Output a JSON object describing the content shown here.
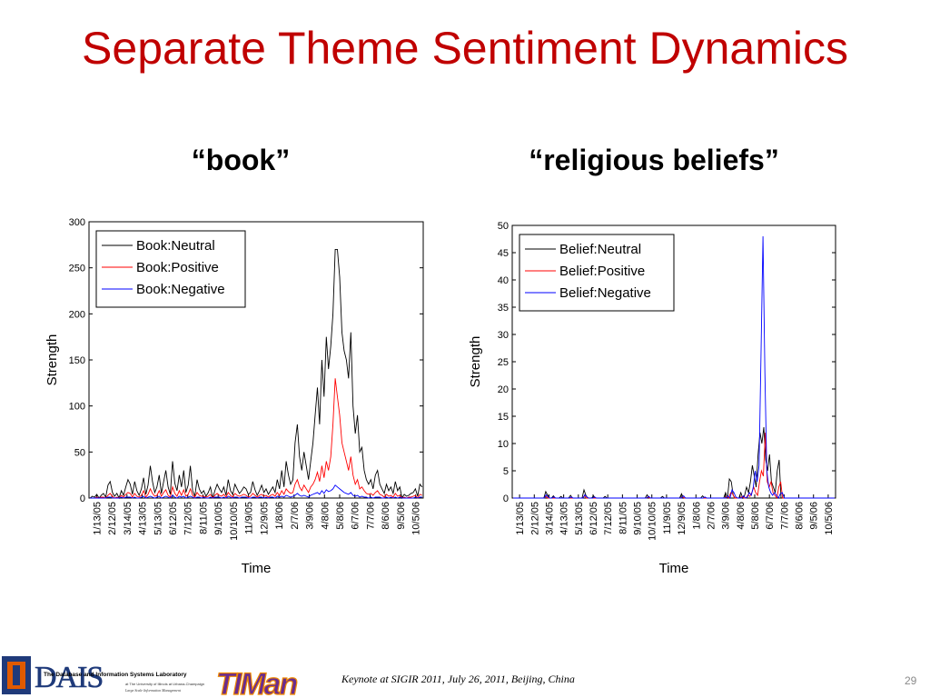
{
  "slide": {
    "title": "Separate Theme Sentiment Dynamics",
    "subtitle_left": "“book”",
    "subtitle_right": "“religious beliefs”",
    "footer": "Keynote at SIGIR 2011,  July 26, 2011, Beijing, China",
    "page_number": "29",
    "logo_dais": "DAIS",
    "logo_dais_caption": "The Database and Information Systems Laboratory",
    "logo_dais_sub1": "at The University of Illinois at Urbana-Champaign",
    "logo_dais_sub2": "Large Scale Information Management",
    "logo_timan": "TIMan",
    "colors": {
      "title": "#c00000",
      "illinois_blue": "#1f3a7a",
      "illinois_orange": "#e05a00",
      "timan_purple": "#6a2c8e",
      "timan_orange": "#f08a00"
    }
  },
  "chart_data": [
    {
      "type": "line",
      "xlabel": "Time",
      "ylabel": "Strength",
      "ylim": [
        0,
        300
      ],
      "yticks": [
        0,
        50,
        100,
        150,
        200,
        250,
        300
      ],
      "x_ticks": [
        "1/13/05",
        "2/12/05",
        "3/14/05",
        "4/13/05",
        "5/13/05",
        "6/12/05",
        "7/12/05",
        "8/11/05",
        "9/10/05",
        "10/10/05",
        "11/9/05",
        "12/9/05",
        "1/8/06",
        "2/7/06",
        "3/9/06",
        "4/8/06",
        "5/8/06",
        "6/7/06",
        "7/7/06",
        "8/6/06",
        "9/5/06",
        "10/5/06"
      ],
      "legend_position": "top-left",
      "series": [
        {
          "name": "Book:Neutral",
          "color": "#000000",
          "values": [
            0,
            2,
            1,
            4,
            0,
            3,
            5,
            1,
            14,
            18,
            6,
            2,
            5,
            0,
            8,
            3,
            12,
            20,
            15,
            4,
            18,
            8,
            3,
            10,
            22,
            4,
            14,
            35,
            18,
            6,
            12,
            25,
            5,
            18,
            30,
            12,
            4,
            40,
            16,
            8,
            25,
            12,
            30,
            6,
            14,
            35,
            8,
            2,
            20,
            10,
            5,
            8,
            2,
            6,
            12,
            0,
            8,
            15,
            10,
            6,
            12,
            3,
            20,
            8,
            4,
            15,
            10,
            5,
            8,
            12,
            10,
            4,
            6,
            18,
            9,
            3,
            8,
            14,
            6,
            10,
            4,
            8,
            12,
            6,
            20,
            10,
            30,
            12,
            40,
            25,
            15,
            20,
            60,
            80,
            45,
            30,
            50,
            35,
            20,
            40,
            60,
            90,
            120,
            80,
            150,
            110,
            175,
            140,
            165,
            200,
            270,
            270,
            240,
            180,
            160,
            150,
            130,
            180,
            100,
            70,
            90,
            50,
            55,
            30,
            20,
            15,
            20,
            10,
            25,
            30,
            15,
            10,
            5,
            15,
            8,
            12,
            5,
            18,
            8,
            12,
            0,
            4,
            2,
            3,
            5,
            6,
            10,
            2,
            15,
            12
          ]
        },
        {
          "name": "Book:Positive",
          "color": "#ff0000",
          "values": [
            0,
            0,
            0,
            1,
            0,
            1,
            1,
            0,
            3,
            5,
            2,
            0,
            1,
            0,
            3,
            1,
            4,
            6,
            5,
            1,
            5,
            2,
            1,
            3,
            8,
            1,
            4,
            10,
            5,
            2,
            3,
            8,
            2,
            6,
            9,
            3,
            1,
            12,
            5,
            2,
            8,
            3,
            9,
            2,
            4,
            10,
            3,
            1,
            6,
            3,
            2,
            2,
            1,
            2,
            4,
            0,
            3,
            5,
            3,
            2,
            4,
            1,
            6,
            3,
            1,
            5,
            3,
            2,
            3,
            4,
            3,
            1,
            2,
            5,
            3,
            1,
            3,
            4,
            2,
            3,
            1,
            3,
            4,
            2,
            6,
            3,
            8,
            4,
            10,
            7,
            5,
            6,
            15,
            20,
            12,
            8,
            14,
            10,
            6,
            12,
            15,
            20,
            28,
            18,
            35,
            22,
            40,
            30,
            45,
            80,
            130,
            110,
            90,
            60,
            50,
            40,
            30,
            45,
            25,
            15,
            20,
            10,
            12,
            8,
            5,
            4,
            5,
            3,
            6,
            8,
            4,
            3,
            1,
            4,
            2,
            3,
            1,
            5,
            2,
            3,
            0,
            1,
            0,
            1,
            1,
            2,
            3,
            0,
            4,
            3
          ]
        },
        {
          "name": "Book:Negative",
          "color": "#0000ff",
          "values": [
            0,
            0,
            0,
            0,
            0,
            0,
            0,
            0,
            1,
            1,
            0,
            0,
            0,
            0,
            1,
            0,
            1,
            1,
            1,
            0,
            1,
            0,
            0,
            1,
            2,
            0,
            1,
            2,
            1,
            0,
            1,
            2,
            0,
            1,
            2,
            1,
            0,
            3,
            1,
            0,
            2,
            1,
            2,
            0,
            1,
            2,
            1,
            0,
            1,
            1,
            0,
            1,
            0,
            0,
            1,
            0,
            1,
            1,
            1,
            0,
            1,
            0,
            2,
            1,
            0,
            1,
            1,
            0,
            1,
            1,
            1,
            0,
            0,
            1,
            1,
            0,
            1,
            1,
            0,
            1,
            0,
            1,
            1,
            0,
            2,
            1,
            2,
            1,
            3,
            2,
            1,
            2,
            3,
            5,
            3,
            2,
            3,
            2,
            1,
            3,
            4,
            5,
            6,
            4,
            8,
            5,
            9,
            7,
            8,
            10,
            14,
            12,
            10,
            8,
            6,
            5,
            4,
            6,
            3,
            2,
            3,
            1,
            2,
            1,
            1,
            0,
            1,
            0,
            1,
            1,
            1,
            0,
            0,
            1,
            0,
            1,
            0,
            1,
            0,
            1,
            0,
            0,
            0,
            0,
            0,
            0,
            1,
            0,
            1,
            1
          ]
        }
      ]
    },
    {
      "type": "line",
      "xlabel": "Time",
      "ylabel": "Strength",
      "ylim": [
        0,
        50
      ],
      "yticks": [
        0,
        5,
        10,
        15,
        20,
        25,
        30,
        35,
        40,
        45,
        50
      ],
      "x_ticks": [
        "1/13/05",
        "2/12/05",
        "3/14/05",
        "4/13/05",
        "5/13/05",
        "6/12/05",
        "7/12/05",
        "8/11/05",
        "9/10/05",
        "10/10/05",
        "11/9/05",
        "12/9/05",
        "1/8/06",
        "2/7/06",
        "3/9/06",
        "4/8/06",
        "5/8/06",
        "6/7/06",
        "7/7/06",
        "8/6/06",
        "9/5/06",
        "10/5/06"
      ],
      "legend_position": "top-left",
      "series": [
        {
          "name": "Belief:Neutral",
          "color": "#000000",
          "values": [
            0,
            0,
            0,
            0,
            0,
            0,
            0,
            0,
            0,
            0,
            0,
            0,
            0,
            0,
            0,
            0,
            0,
            1.2,
            0.5,
            0,
            0,
            0.4,
            0,
            0,
            0,
            0.3,
            0,
            0,
            0,
            0,
            0.5,
            0,
            0,
            0,
            0,
            0,
            0,
            1.5,
            0.5,
            0,
            0,
            0,
            0.4,
            0,
            0,
            0,
            0,
            0,
            0.3,
            0,
            0,
            0,
            0,
            0,
            0,
            0,
            0,
            0,
            0,
            0,
            0,
            0,
            0,
            0,
            0,
            0,
            0,
            0,
            0,
            0,
            0.6,
            0,
            0,
            0,
            0,
            0,
            0,
            0,
            0.3,
            0,
            0,
            0,
            0,
            0,
            0,
            0,
            0,
            0,
            0.8,
            0,
            0,
            0,
            0,
            0,
            0,
            0,
            0,
            0,
            0,
            0.4,
            0,
            0,
            0,
            0,
            0,
            0,
            0,
            0,
            0,
            0,
            0,
            1,
            0,
            3.5,
            3,
            0.5,
            0,
            0,
            0,
            1,
            0,
            0.5,
            2,
            1,
            3,
            6,
            4,
            2,
            8,
            12,
            10,
            13,
            7,
            5,
            8,
            3,
            2,
            1,
            5,
            7,
            0,
            0,
            0,
            0,
            0,
            0,
            0,
            0,
            0,
            0,
            0,
            0,
            0,
            0,
            0,
            0,
            0,
            0,
            0,
            0,
            0,
            0,
            0,
            0,
            0,
            0,
            0,
            0,
            0
          ]
        },
        {
          "name": "Belief:Positive",
          "color": "#ff0000",
          "values": [
            0,
            0,
            0,
            0,
            0,
            0,
            0,
            0,
            0,
            0,
            0,
            0,
            0,
            0,
            0,
            0,
            0,
            0.3,
            0,
            0,
            0,
            0,
            0,
            0,
            0,
            0,
            0,
            0,
            0,
            0,
            0,
            0,
            0,
            0,
            0,
            0,
            0,
            0.4,
            0,
            0,
            0,
            0,
            0,
            0,
            0,
            0,
            0,
            0,
            0,
            0,
            0,
            0,
            0,
            0,
            0,
            0,
            0,
            0,
            0,
            0,
            0,
            0,
            0,
            0,
            0,
            0,
            0,
            0,
            0,
            0,
            0.2,
            0,
            0,
            0,
            0,
            0,
            0,
            0,
            0,
            0,
            0,
            0,
            0,
            0,
            0,
            0,
            0,
            0,
            0.2,
            0,
            0,
            0,
            0,
            0,
            0,
            0,
            0,
            0,
            0,
            0,
            0,
            0,
            0,
            0,
            0,
            0,
            0,
            0,
            0,
            0,
            0,
            0.3,
            0,
            1,
            0.8,
            0,
            0,
            0,
            0,
            0.3,
            0,
            0,
            0.6,
            0.3,
            1,
            2,
            1,
            0.5,
            3,
            5,
            4,
            12,
            3,
            2,
            3,
            1,
            0.5,
            0,
            2,
            3,
            0,
            0,
            0,
            0,
            0,
            0,
            0,
            0,
            0,
            0,
            0,
            0,
            0,
            0,
            0,
            0,
            0,
            0,
            0,
            0,
            0,
            0,
            0,
            0,
            0,
            0,
            0,
            0
          ]
        },
        {
          "name": "Belief:Negative",
          "color": "#0000ff",
          "values": [
            0,
            0,
            0,
            0,
            0,
            0,
            0,
            0,
            0,
            0,
            0,
            0,
            0,
            0,
            0,
            0,
            0,
            0.6,
            0.2,
            0,
            0,
            0.2,
            0,
            0,
            0,
            0,
            0,
            0,
            0,
            0,
            0.2,
            0,
            0,
            0,
            0,
            0,
            0,
            0.6,
            0.2,
            0,
            0,
            0,
            0.2,
            0,
            0,
            0,
            0,
            0,
            0,
            0,
            0,
            0,
            0,
            0,
            0,
            0,
            0,
            0,
            0,
            0,
            0,
            0,
            0,
            0,
            0,
            0,
            0,
            0,
            0,
            0,
            0.3,
            0,
            0,
            0,
            0,
            0,
            0,
            0,
            0,
            0,
            0,
            0,
            0,
            0,
            0,
            0,
            0,
            0,
            0.4,
            0,
            0,
            0,
            0,
            0,
            0,
            0,
            0,
            0,
            0,
            0.2,
            0,
            0,
            0,
            0,
            0,
            0,
            0,
            0,
            0,
            0,
            0,
            0.4,
            0,
            1.5,
            1,
            0.2,
            0,
            0,
            0,
            0.4,
            0,
            0.2,
            1,
            0.5,
            2,
            5,
            3,
            6,
            26,
            48,
            23,
            5,
            2,
            1,
            0.5,
            1,
            0.5,
            0,
            0.8,
            1,
            0,
            0,
            0,
            0,
            0,
            0,
            0,
            0,
            0,
            0,
            0,
            0,
            0,
            0,
            0,
            0,
            0,
            0,
            0,
            0,
            0,
            0,
            0,
            0,
            0,
            0,
            0
          ]
        }
      ]
    }
  ]
}
